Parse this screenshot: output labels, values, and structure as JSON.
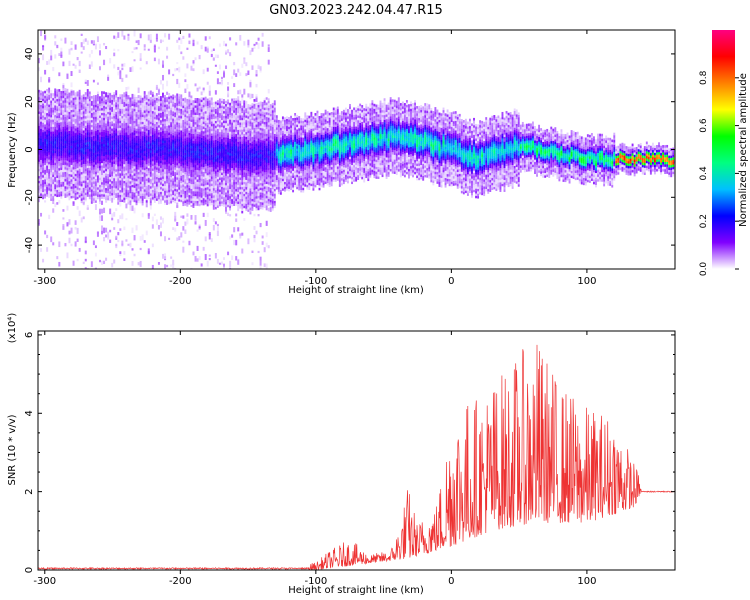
{
  "title": "GN03.2023.242.04.47.R15",
  "chart_data": [
    {
      "type": "heatmap",
      "xlabel": "Height of straight line (km)",
      "ylabel": "Frequency (Hz)",
      "xlim": [
        -305,
        165
      ],
      "ylim": [
        -50,
        50
      ],
      "x_ticks": [
        -300,
        -200,
        -100,
        0,
        100
      ],
      "y_ticks": [
        -40,
        -20,
        0,
        20,
        40
      ],
      "colorbar": {
        "label": "Normalized spectral amplitude",
        "range": [
          0,
          1
        ],
        "ticks": [
          "0.0",
          "0.2",
          "0.4",
          "0.6",
          "0.8"
        ],
        "colors": [
          "#ffffff",
          "#8000ff",
          "#0000ff",
          "#00c0ff",
          "#00ff80",
          "#00ff00",
          "#ffff00",
          "#ff8000",
          "#ff0000",
          "#ff0080"
        ]
      },
      "band_center_hz": [
        {
          "x": -300,
          "f": 2
        },
        {
          "x": -200,
          "f": 0
        },
        {
          "x": -150,
          "f": -3
        },
        {
          "x": -100,
          "f": 0
        },
        {
          "x": -60,
          "f": 4
        },
        {
          "x": -40,
          "f": 6
        },
        {
          "x": 0,
          "f": 0
        },
        {
          "x": 20,
          "f": -4
        },
        {
          "x": 50,
          "f": 2
        },
        {
          "x": 100,
          "f": -4
        },
        {
          "x": 140,
          "f": -4
        },
        {
          "x": 165,
          "f": -4
        }
      ]
    },
    {
      "type": "line",
      "xlabel": "Height of straight line (km)",
      "ylabel": "SNR (10 * v/v)",
      "y_multiplier": "(x10⁴)",
      "xlim": [
        -305,
        165
      ],
      "ylim": [
        0,
        6.1
      ],
      "x_ticks": [
        -300,
        -200,
        -100,
        0,
        100
      ],
      "y_ticks": [
        0,
        2,
        4,
        6
      ],
      "series_color": "#ee3333",
      "envelope": [
        {
          "x": -305,
          "y": 0.02
        },
        {
          "x": -150,
          "y": 0.05
        },
        {
          "x": -120,
          "y": 0.1
        },
        {
          "x": -100,
          "y": 0.2
        },
        {
          "x": -90,
          "y": 0.5
        },
        {
          "x": -75,
          "y": 0.8
        },
        {
          "x": -60,
          "y": 0.4
        },
        {
          "x": -45,
          "y": 0.5
        },
        {
          "x": -38,
          "y": 1.2
        },
        {
          "x": -32,
          "y": 2.2
        },
        {
          "x": -25,
          "y": 1.2
        },
        {
          "x": -10,
          "y": 1.8
        },
        {
          "x": 0,
          "y": 4.3
        },
        {
          "x": 20,
          "y": 4.5
        },
        {
          "x": 40,
          "y": 5.2
        },
        {
          "x": 63,
          "y": 6.0
        },
        {
          "x": 80,
          "y": 4.8
        },
        {
          "x": 100,
          "y": 4.2
        },
        {
          "x": 120,
          "y": 4.0
        },
        {
          "x": 138,
          "y": 2.5
        },
        {
          "x": 140,
          "y": 2.05
        },
        {
          "x": 165,
          "y": 2.0
        }
      ],
      "baseline": [
        {
          "x": -100,
          "y": 0.0
        },
        {
          "x": -30,
          "y": 0.3
        },
        {
          "x": 0,
          "y": 0.6
        },
        {
          "x": 30,
          "y": 1.0
        },
        {
          "x": 60,
          "y": 1.2
        },
        {
          "x": 100,
          "y": 1.2
        },
        {
          "x": 135,
          "y": 1.6
        },
        {
          "x": 140,
          "y": 2.0
        },
        {
          "x": 165,
          "y": 2.0
        }
      ]
    }
  ]
}
